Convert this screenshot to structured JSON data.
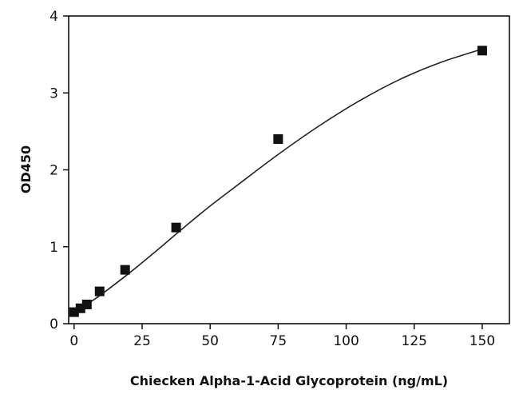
{
  "chart_data": {
    "type": "scatter",
    "title": "",
    "xlabel": "Chiecken Alpha-1-Acid Glycoprotein (ng/mL)",
    "ylabel": "OD450",
    "xlim": [
      -2,
      160
    ],
    "ylim": [
      0,
      4
    ],
    "xticks": [
      0,
      25,
      50,
      75,
      100,
      125,
      150
    ],
    "yticks": [
      0,
      1,
      2,
      3,
      4
    ],
    "xtick_labels": [
      "0",
      "25",
      "50",
      "75",
      "100",
      "125",
      "150"
    ],
    "ytick_labels": [
      "0",
      "1",
      "2",
      "3",
      "4"
    ],
    "grid": false,
    "legend": "none",
    "series": [
      {
        "x": [
          0,
          2.34,
          4.69,
          9.38,
          18.75,
          37.5,
          75,
          150
        ],
        "y": [
          0.15,
          0.2,
          0.25,
          0.42,
          0.7,
          1.25,
          2.4,
          3.55
        ]
      }
    ],
    "fit_curve": {
      "x": [
        0,
        5,
        10,
        20,
        30,
        40,
        50,
        60,
        75,
        90,
        105,
        120,
        135,
        150
      ],
      "y": [
        0.14,
        0.26,
        0.38,
        0.65,
        0.94,
        1.24,
        1.53,
        1.8,
        2.2,
        2.57,
        2.9,
        3.18,
        3.4,
        3.57
      ]
    },
    "colors": {
      "marker": "#111111",
      "line": "#222222",
      "axis": "#111111"
    }
  }
}
